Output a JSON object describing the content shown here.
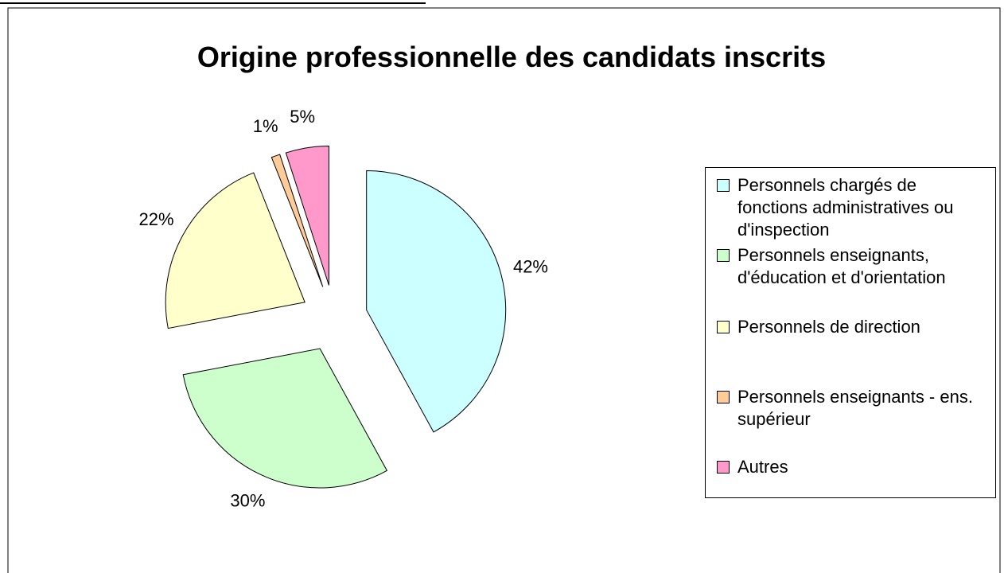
{
  "chart_data": {
    "type": "pie",
    "title": "Origine professionnelle des candidats inscrits",
    "series": [
      {
        "name": "Personnels chargés de fonctions administratives ou d'inspection",
        "color": "#ccffff"
      },
      {
        "name": "Personnels enseignants, d'éducation et d'orientation",
        "color": "#ccffcc"
      },
      {
        "name": "Personnels de direction",
        "color": "#ffffcc"
      },
      {
        "name": "Personnels enseignants - ens. supérieur",
        "color": "#ffcc99"
      },
      {
        "name": "Autres",
        "color": "#ff99cc"
      }
    ],
    "values": [
      42,
      30,
      22,
      1,
      5
    ],
    "value_labels": [
      "42%",
      "30%",
      "22%",
      "1%",
      "5%"
    ],
    "legend": "right"
  }
}
